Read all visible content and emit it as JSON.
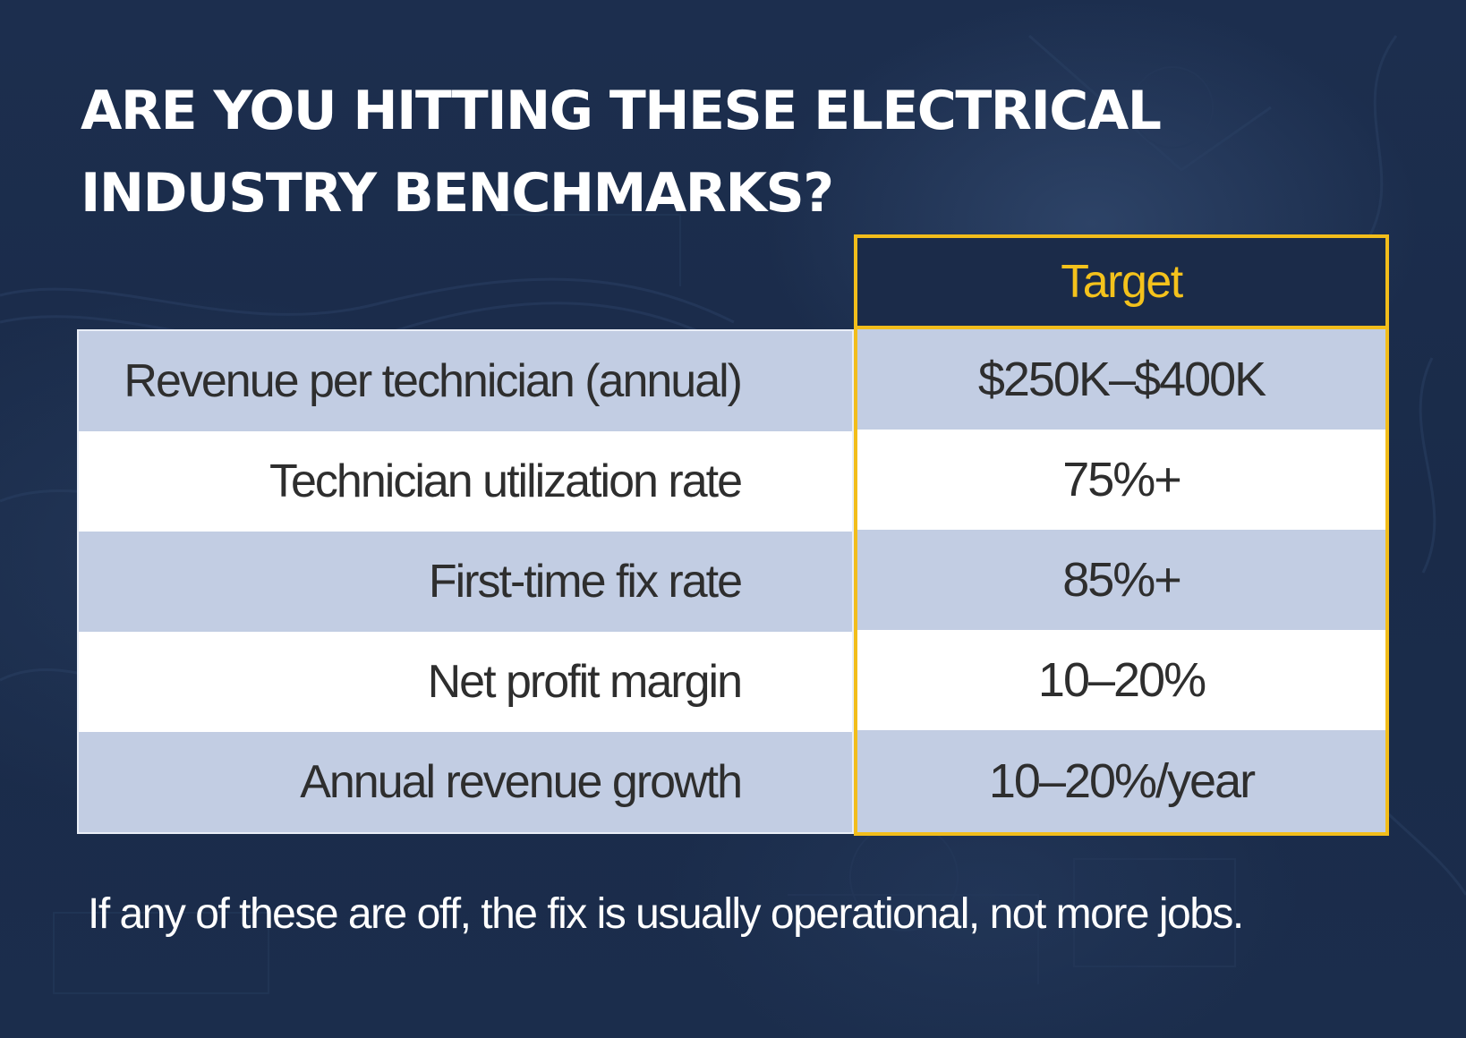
{
  "title": {
    "line1": "ARE YOU HITTING THESE ELECTRICAL",
    "line2": "INDUSTRY BENCHMARKS?"
  },
  "table": {
    "target_header": "Target",
    "rows": [
      {
        "metric": "Revenue per technician (annual)",
        "target": "$250K–$400K"
      },
      {
        "metric": "Technician utilization rate",
        "target": "75%+"
      },
      {
        "metric": "First-time fix rate",
        "target": "85%+"
      },
      {
        "metric": "Net profit margin",
        "target": "10–20%"
      },
      {
        "metric": "Annual revenue growth",
        "target": "10–20%/year"
      }
    ]
  },
  "footnote": "If any of these are off, the fix is usually operational, not more jobs.",
  "colors": {
    "background": "#1b2c4b",
    "accent": "#f2bd1b",
    "row_alt": "#c2cde3",
    "row_plain": "#ffffff",
    "text_dark": "#2e2e2e"
  }
}
